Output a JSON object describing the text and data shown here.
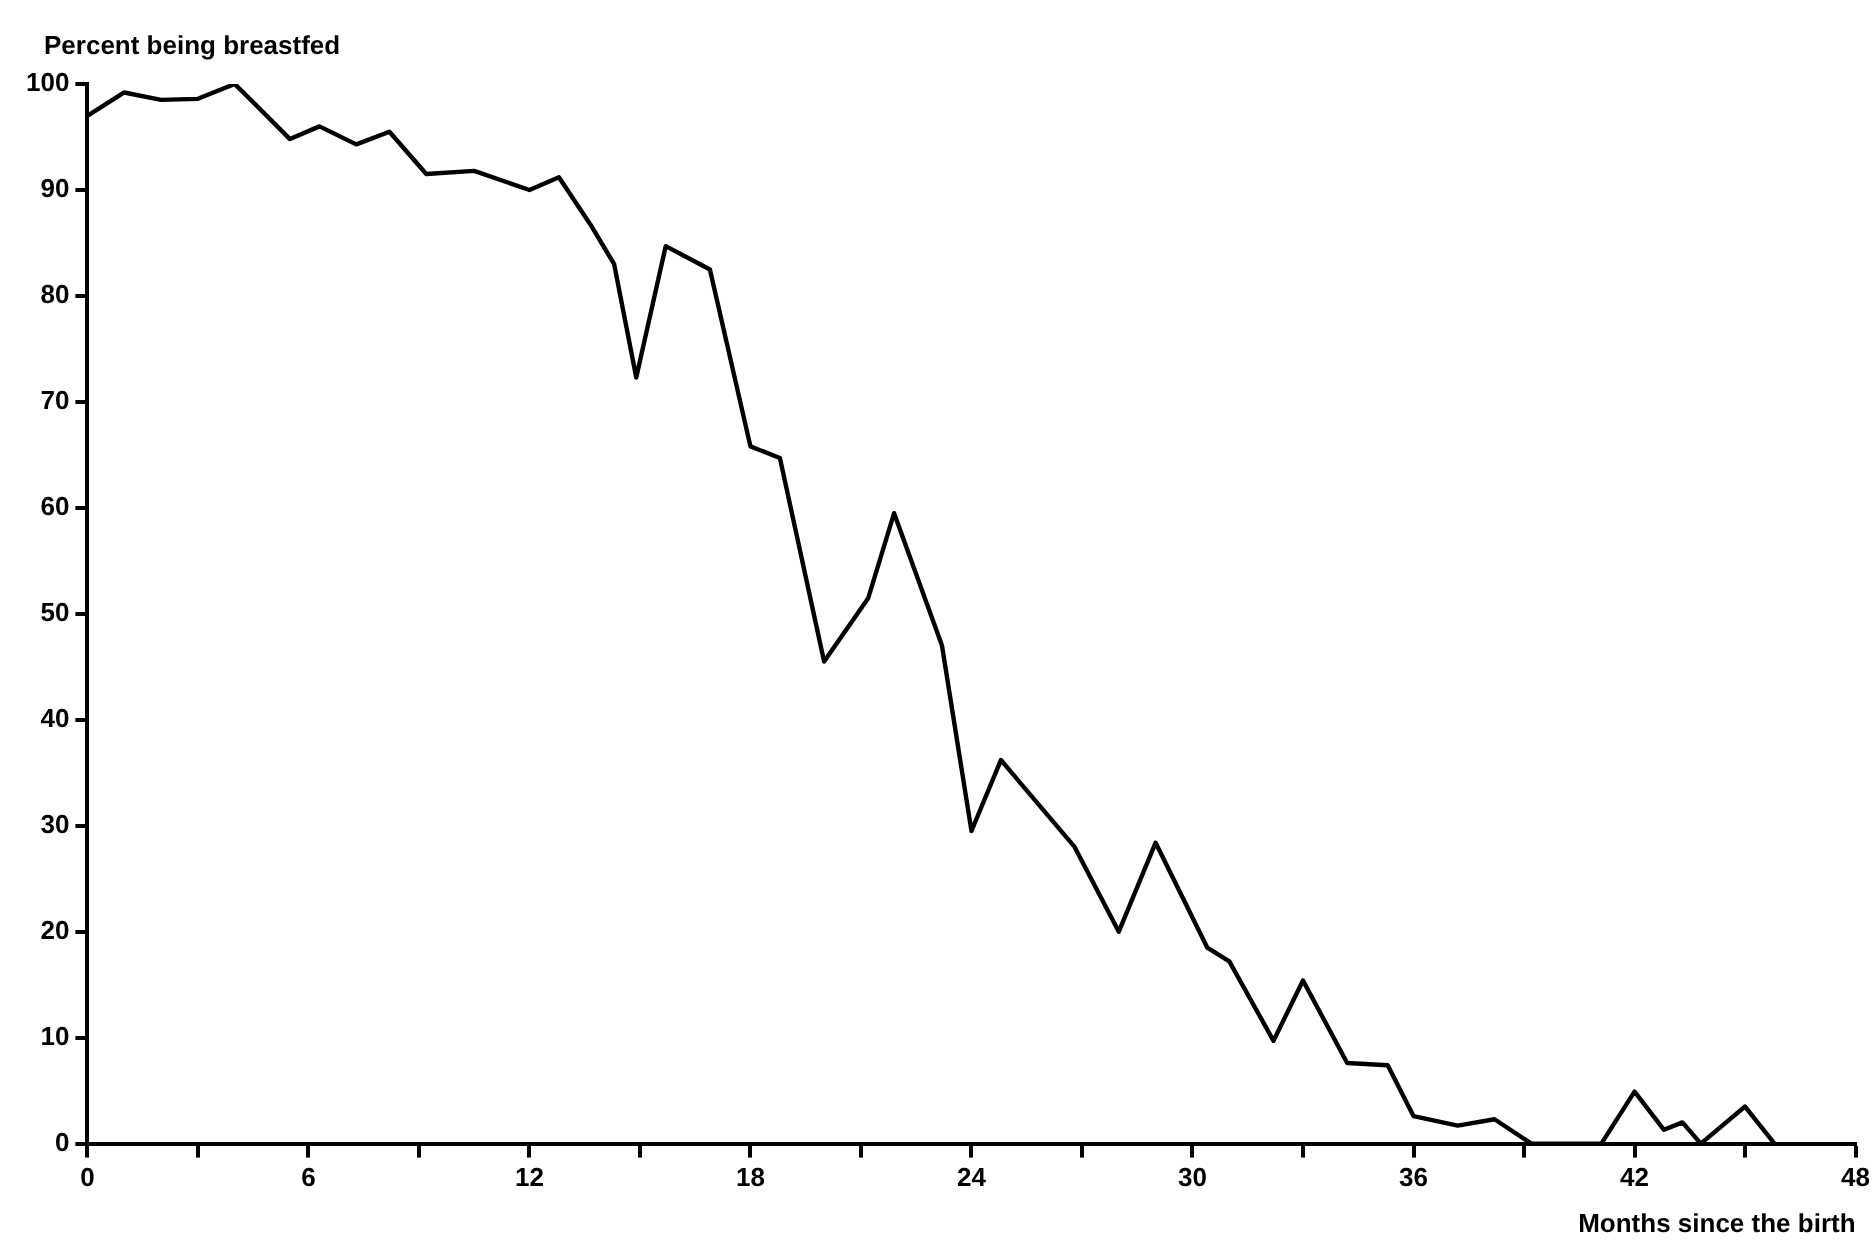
{
  "chart_data": {
    "type": "line",
    "ylabel": "Percent being breastfed",
    "xlabel": "Months since the birth",
    "x": [
      0,
      1,
      2,
      3,
      4,
      5.5,
      6.3,
      7.3,
      8.2,
      9.2,
      10.5,
      12,
      12.8,
      13.7,
      14.3,
      14.9,
      15.7,
      16.9,
      18,
      18.8,
      20,
      21.2,
      21.9,
      23.2,
      24,
      24.8,
      26.8,
      28,
      29,
      30.4,
      31,
      32.2,
      33,
      34.2,
      35.3,
      36,
      37.2,
      38.2,
      39.2,
      41.1,
      42,
      42.8,
      43.3,
      43.8,
      45,
      45.8
    ],
    "series": [
      {
        "color": "#000000",
        "values": [
          97,
          99.2,
          98.5,
          98.6,
          100,
          94.8,
          96,
          94.3,
          95.5,
          91.5,
          91.8,
          90,
          91.2,
          86.5,
          83,
          72.3,
          84.7,
          82.5,
          65.8,
          64.7,
          45.5,
          51.5,
          59.5,
          47,
          29.5,
          36.2,
          28,
          20,
          28.4,
          18.5,
          17.2,
          9.7,
          15.4,
          7.6,
          7.4,
          2.6,
          1.7,
          2.3,
          0,
          0,
          4.9,
          1.3,
          2,
          0,
          3.5,
          0
        ]
      }
    ],
    "xlim": [
      0,
      48
    ],
    "xticks": [
      0,
      {
        "value": 3,
        "label": null
      },
      6,
      {
        "value": 9,
        "label": null
      },
      12,
      {
        "value": 15,
        "label": null
      },
      18,
      {
        "value": 21,
        "label": null
      },
      24,
      {
        "value": 27,
        "label": null
      },
      30,
      {
        "value": 33,
        "label": null
      },
      36,
      {
        "value": 39,
        "label": null
      },
      42,
      {
        "value": 45,
        "label": null
      },
      48
    ],
    "ylim": [
      0,
      100
    ],
    "yticks": [
      0,
      10,
      20,
      30,
      40,
      50,
      60,
      70,
      80,
      90,
      100
    ],
    "grid": false,
    "legend": false,
    "marker": "none",
    "line_style": "solid"
  }
}
